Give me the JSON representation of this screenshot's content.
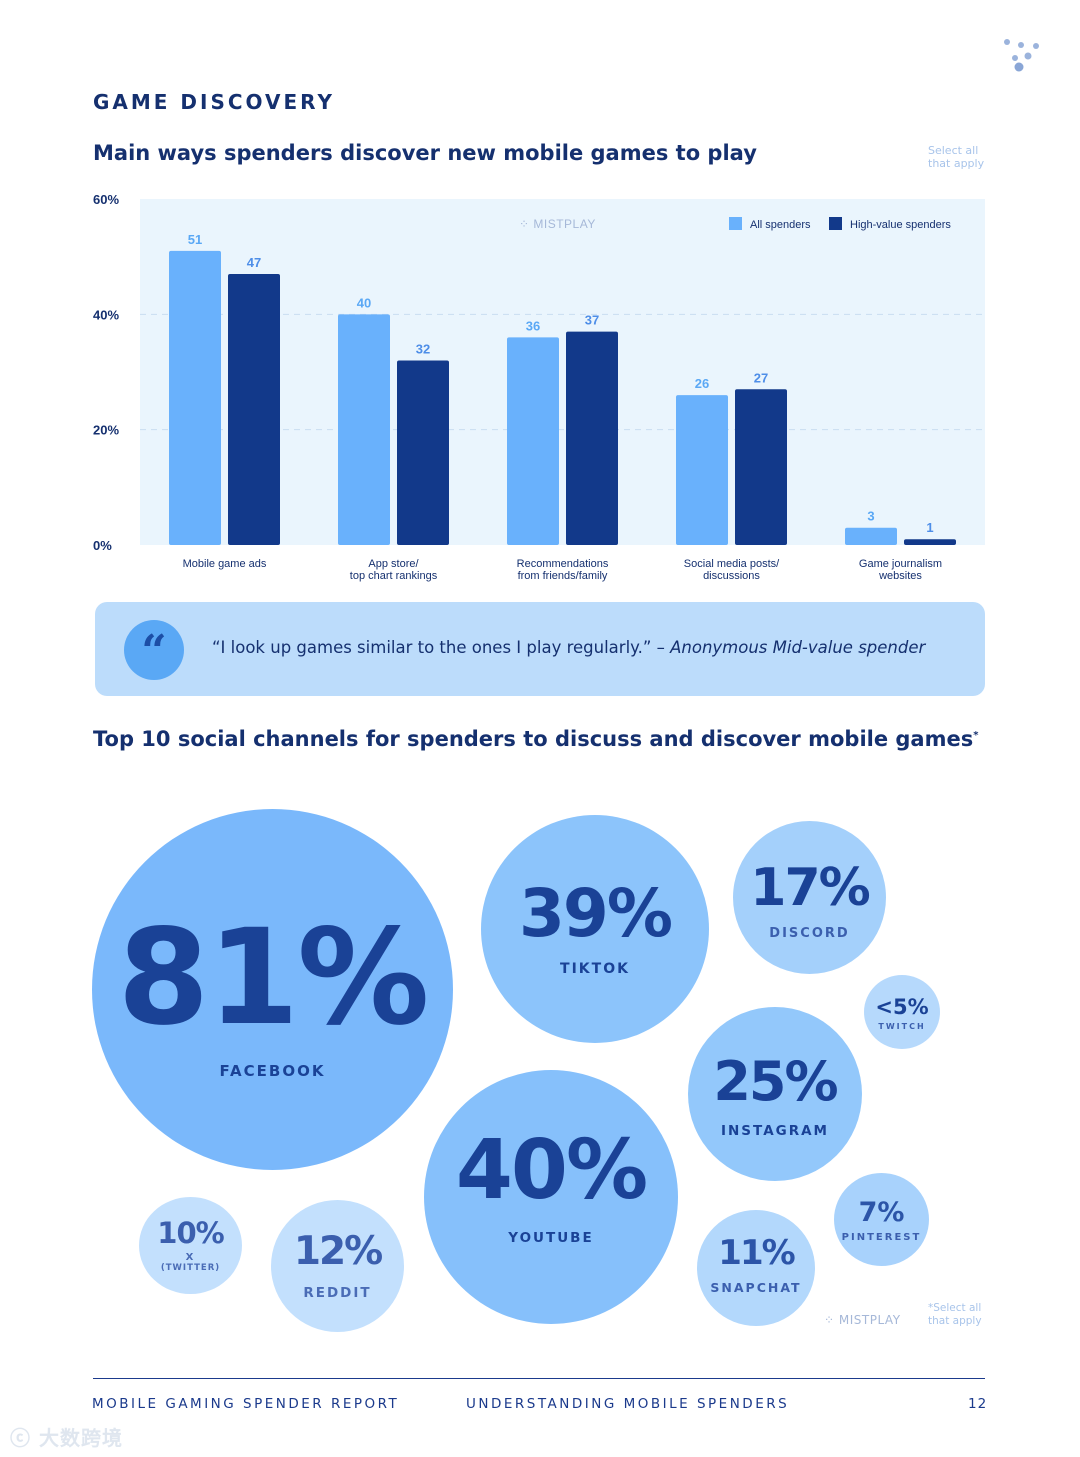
{
  "header": {
    "section_title": "GAME DISCOVERY",
    "chart_title": "Main ways spenders discover new mobile games to play",
    "select_note_line1": "Select all",
    "select_note_line2": "that apply"
  },
  "chart_data": {
    "type": "bar",
    "title": "Main ways spenders discover new mobile games to play",
    "categories": [
      [
        "Mobile game ads"
      ],
      [
        "App store/",
        "top chart rankings"
      ],
      [
        "Recommendations",
        "from friends/family"
      ],
      [
        "Social media posts/",
        "discussions"
      ],
      [
        "Game journalism",
        "websites"
      ]
    ],
    "series": [
      {
        "name": "All spenders",
        "values": [
          51,
          40,
          36,
          26,
          3
        ],
        "color": "#69b1fc"
      },
      {
        "name": "High-value spenders",
        "values": [
          47,
          32,
          37,
          27,
          1
        ],
        "color": "#12398a"
      }
    ],
    "ylim": [
      0,
      60
    ],
    "yticks": [
      "0%",
      "20%",
      "40%",
      "60%"
    ],
    "legend_position": "top-right",
    "grid": true,
    "watermark": "MISTPLAY"
  },
  "quote": {
    "text": "“I look up games similar to the ones I play regularly.” – ",
    "attribution": "Anonymous Mid-value spender"
  },
  "social": {
    "title": "Top 10 social channels for spenders to discuss and discover mobile games",
    "title_mark": "*",
    "channels": {
      "facebook": {
        "pct": "81%",
        "label": "FACEBOOK"
      },
      "tiktok": {
        "pct": "39%",
        "label": "TIKTOK"
      },
      "discord": {
        "pct": "17%",
        "label": "DISCORD"
      },
      "twitch": {
        "pct": "<5%",
        "label": "TWITCH"
      },
      "instagram": {
        "pct": "25%",
        "label": "INSTAGRAM"
      },
      "youtube": {
        "pct": "40%",
        "label": "YOUTUBE"
      },
      "pinterest": {
        "pct": "7%",
        "label": "PINTEREST"
      },
      "snapchat": {
        "pct": "11%",
        "label": "SNAPCHAT"
      },
      "reddit": {
        "pct": "12%",
        "label": "REDDIT"
      },
      "x": {
        "pct": "10%",
        "label": "X",
        "sublabel": "(TWITTER)"
      }
    },
    "footnote_line1": "*Select all",
    "footnote_line2": "that apply",
    "watermark": "MISTPLAY"
  },
  "footer": {
    "left": "MOBILE GAMING SPENDER REPORT",
    "center": "UNDERSTANDING MOBILE SPENDERS",
    "page": "12"
  },
  "bottom_watermark": "大数跨境"
}
